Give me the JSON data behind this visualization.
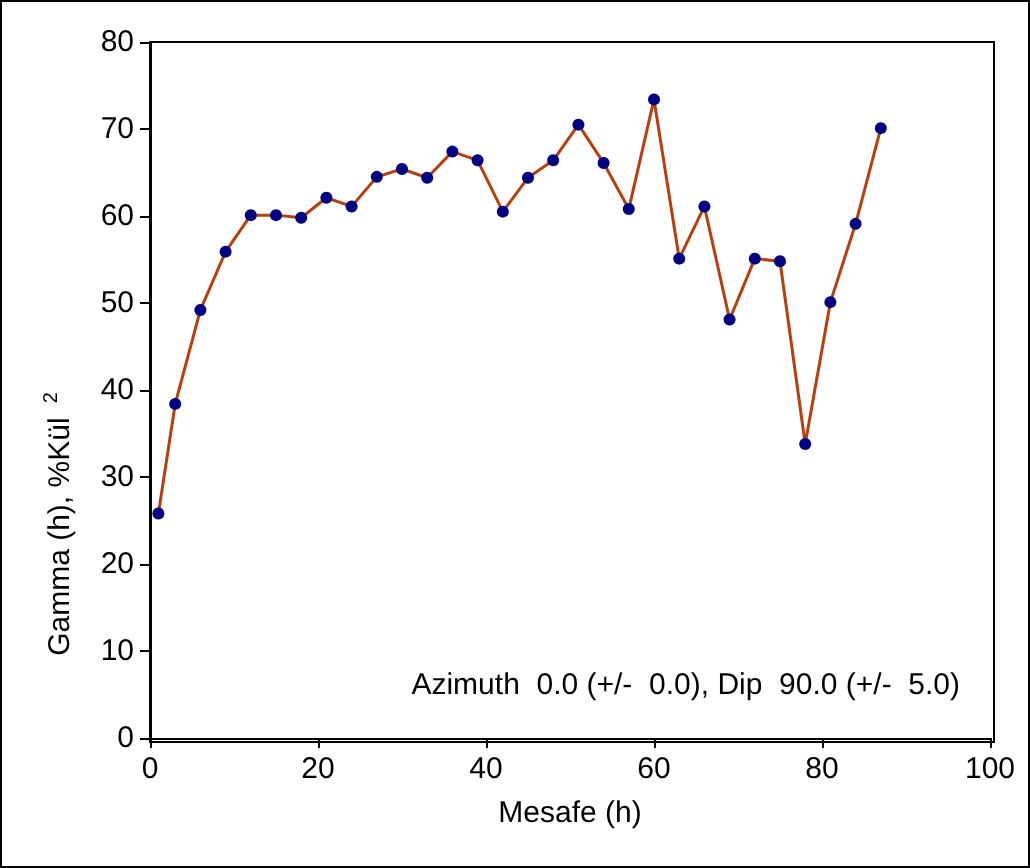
{
  "chart_data": {
    "type": "line",
    "xlabel": "Mesafe (h)",
    "ylabel": "Gamma (h), %Kül $^{2}$",
    "annotations": [
      "Azimuth  0.0 (+/-  0.0), Dip  90.0 (+/-  5.0)"
    ],
    "x": [
      1,
      3,
      6,
      9,
      12,
      15,
      18,
      21,
      24,
      27,
      30,
      33,
      36,
      39,
      42,
      45,
      48,
      51,
      54,
      57,
      60,
      63,
      66,
      69,
      72,
      75,
      78,
      81,
      84,
      87
    ],
    "series": [
      {
        "color": "#b5400f",
        "values": [
          25.8,
          38.4,
          49.2,
          55.9,
          60.1,
          60.1,
          59.8,
          62.1,
          61.1,
          64.5,
          65.4,
          64.4,
          67.4,
          66.4,
          60.5,
          64.4,
          66.4,
          70.5,
          66.1,
          60.8,
          73.4,
          55.1,
          61.1,
          48.1,
          55.1,
          54.8,
          33.8,
          50.1,
          59.1,
          70.1
        ]
      }
    ],
    "marker": "circle",
    "xlim": [
      0,
      100
    ],
    "xticks": [
      0,
      20,
      40,
      60,
      80,
      100
    ],
    "ylim": [
      0,
      80
    ],
    "yticks": [
      0,
      10,
      20,
      30,
      40,
      50,
      60,
      70,
      80
    ],
    "grid": false
  }
}
